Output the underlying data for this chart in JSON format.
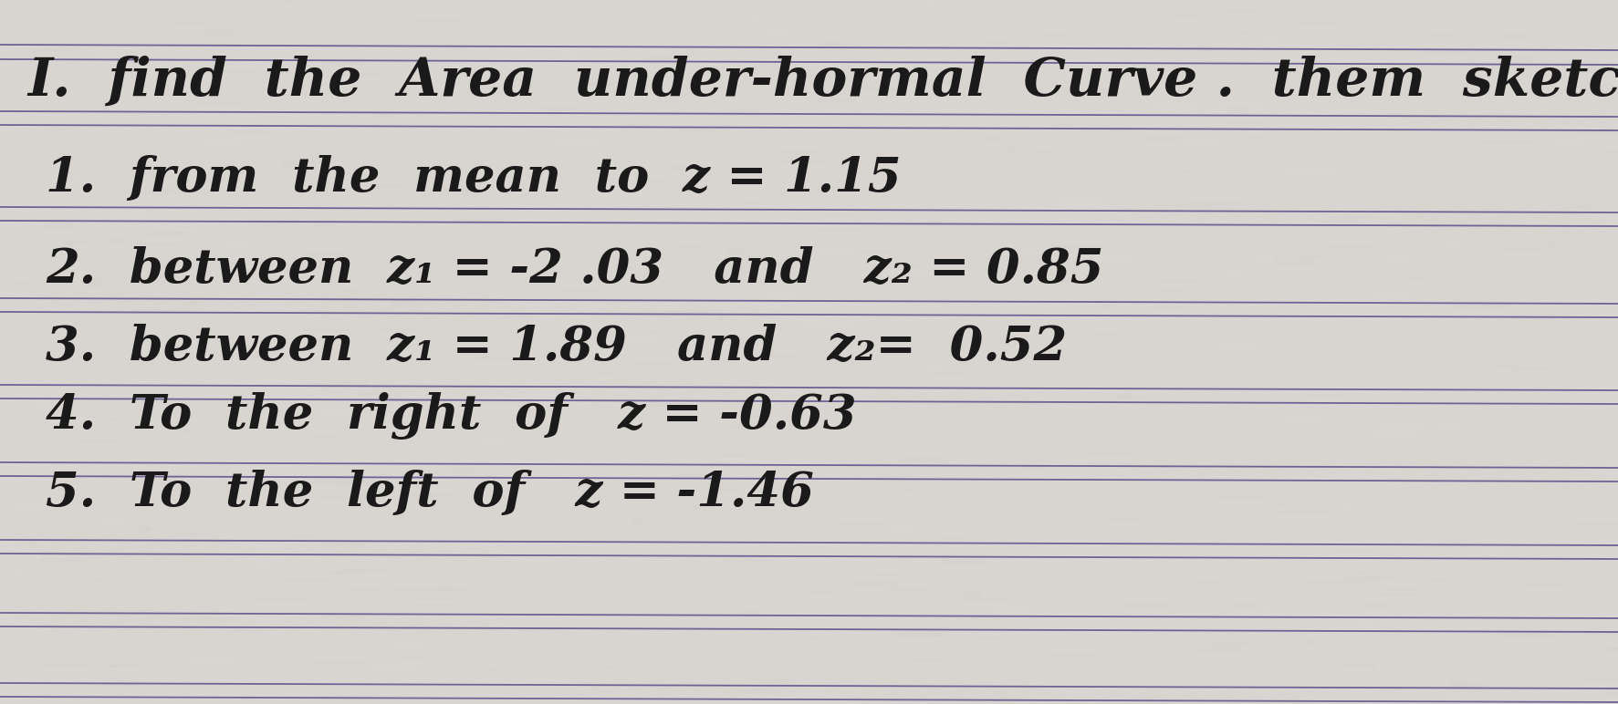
{
  "paper_color": "#d8d5d0",
  "line_color_dark": "#5a4f8a",
  "line_color_light": "#8880b0",
  "text_color": "#1a1a1a",
  "title": "I.  find  the  Area  under-hormal  Curve .  them  sketch",
  "lines": [
    "1.  from  the  mean  to  z = 1.15",
    "2.  between  z₁ = -2 .03   and   z₂ = 0.85",
    "3.  between  z₁ = 1.89   and   z₂=  0.52",
    "4.  To  the  right  of   z = -0.63",
    "5.  To  the  left  of   z = -1.46"
  ],
  "figsize": [
    17.73,
    7.72
  ],
  "dpi": 100,
  "num_ruled_line_pairs": 9,
  "font_size_title": 42,
  "font_size_body": 38
}
